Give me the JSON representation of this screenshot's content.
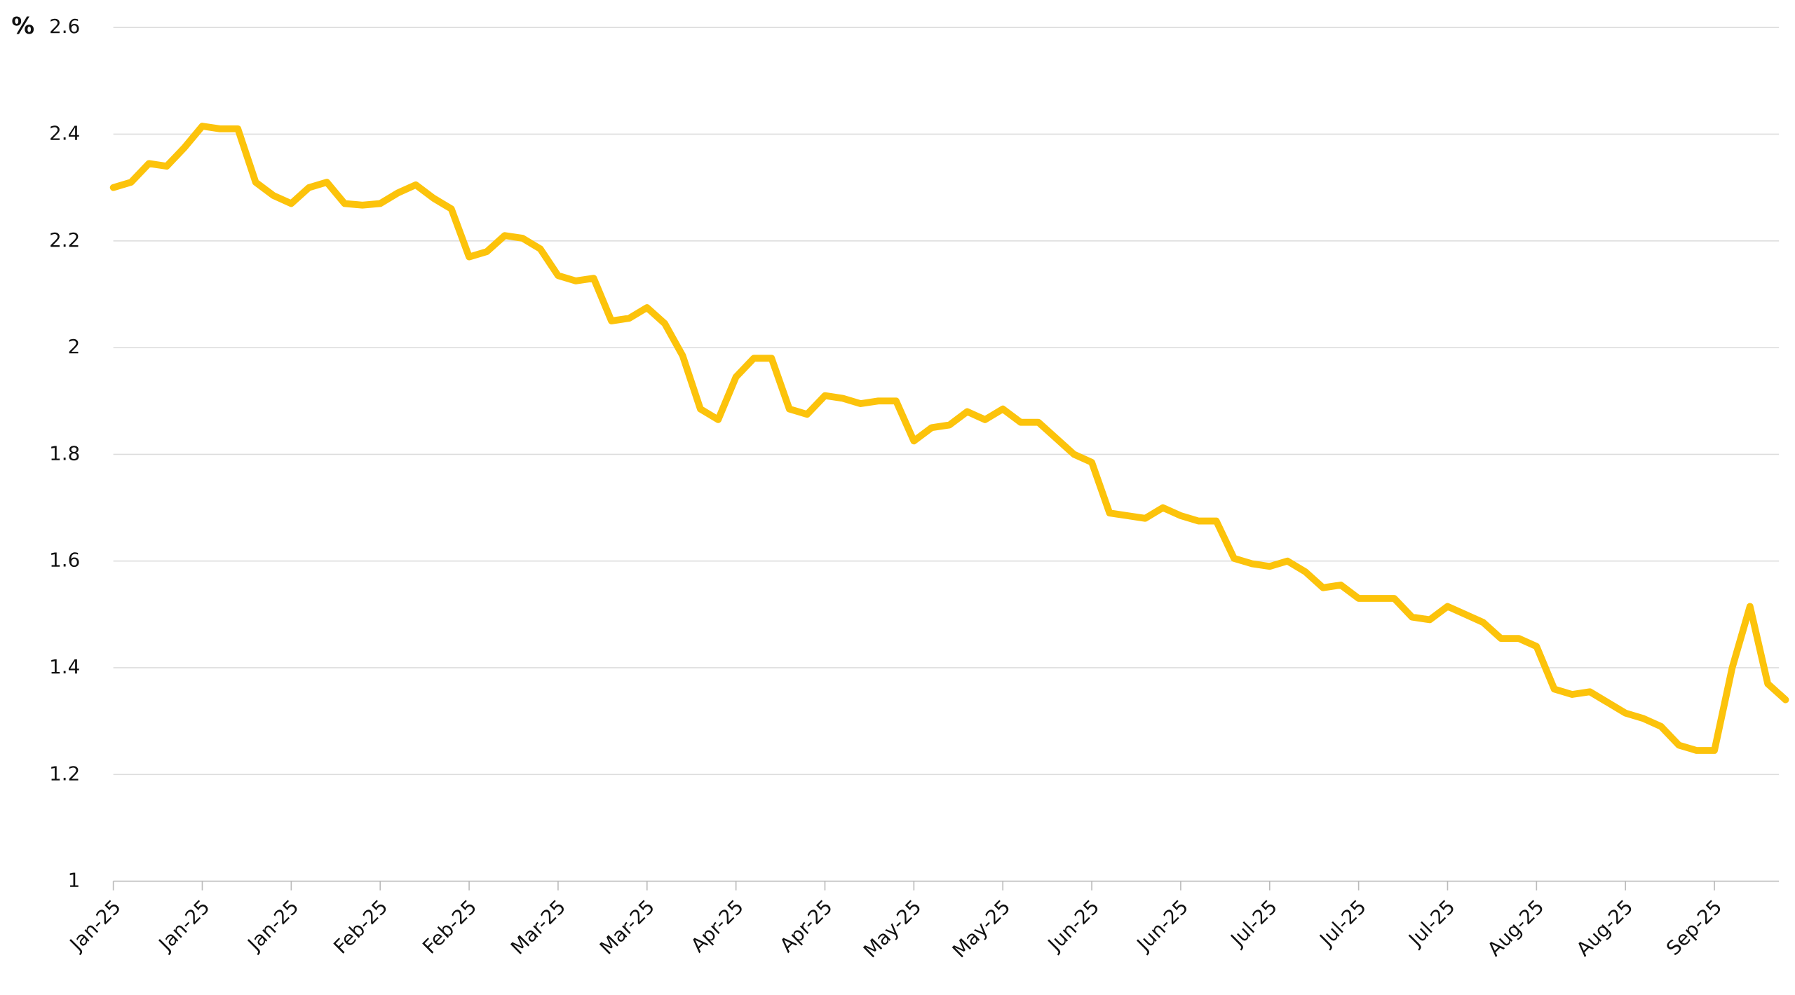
{
  "chart_data": {
    "type": "line",
    "y_label": "%",
    "categories": [
      "Jan-25",
      null,
      null,
      null,
      null,
      "Jan-25",
      null,
      null,
      null,
      null,
      "Jan-25",
      null,
      null,
      null,
      null,
      "Feb-25",
      null,
      null,
      null,
      null,
      "Feb-25",
      null,
      null,
      null,
      null,
      "Mar-25",
      null,
      null,
      null,
      null,
      "Mar-25",
      null,
      null,
      null,
      null,
      "Apr-25",
      null,
      null,
      null,
      null,
      "Apr-25",
      null,
      null,
      null,
      null,
      "May-25",
      null,
      null,
      null,
      null,
      "May-25",
      null,
      null,
      null,
      null,
      "Jun-25",
      null,
      null,
      null,
      null,
      "Jun-25",
      null,
      null,
      null,
      null,
      "Jul-25",
      null,
      null,
      null,
      null,
      "Jul-25",
      null,
      null,
      null,
      null,
      "Jul-25",
      null,
      null,
      null,
      null,
      "Aug-25",
      null,
      null,
      null,
      null,
      "Aug-25",
      null,
      null,
      null,
      null,
      "Sep-25",
      null,
      null,
      null,
      null
    ],
    "series": [
      {
        "name": "%",
        "color": "#fcc30b",
        "values": [
          2.3,
          2.31,
          2.345,
          2.34,
          2.375,
          2.415,
          2.41,
          2.41,
          2.31,
          2.285,
          2.27,
          2.3,
          2.31,
          2.27,
          2.267,
          2.27,
          2.29,
          2.305,
          2.28,
          2.26,
          2.17,
          2.18,
          2.21,
          2.205,
          2.185,
          2.135,
          2.125,
          2.13,
          2.05,
          2.055,
          2.075,
          2.045,
          1.985,
          1.885,
          1.865,
          1.945,
          1.98,
          1.98,
          1.885,
          1.875,
          1.91,
          1.905,
          1.895,
          1.9,
          1.9,
          1.825,
          1.85,
          1.855,
          1.88,
          1.865,
          1.885,
          1.86,
          1.86,
          1.83,
          1.8,
          1.785,
          1.69,
          1.685,
          1.68,
          1.7,
          1.685,
          1.675,
          1.675,
          1.605,
          1.595,
          1.59,
          1.6,
          1.58,
          1.55,
          1.555,
          1.53,
          1.53,
          1.53,
          1.495,
          1.49,
          1.515,
          1.5,
          1.485,
          1.455,
          1.455,
          1.44,
          1.36,
          1.35,
          1.355,
          1.335,
          1.315,
          1.305,
          1.29,
          1.255,
          1.245,
          1.245,
          1.4,
          1.515,
          1.37,
          1.34
        ]
      }
    ],
    "ylim": [
      1,
      2.6
    ],
    "yticks": [
      1,
      1.2,
      1.4,
      1.6,
      1.8,
      2,
      2.2,
      2.4,
      2.6
    ],
    "grid": true
  }
}
